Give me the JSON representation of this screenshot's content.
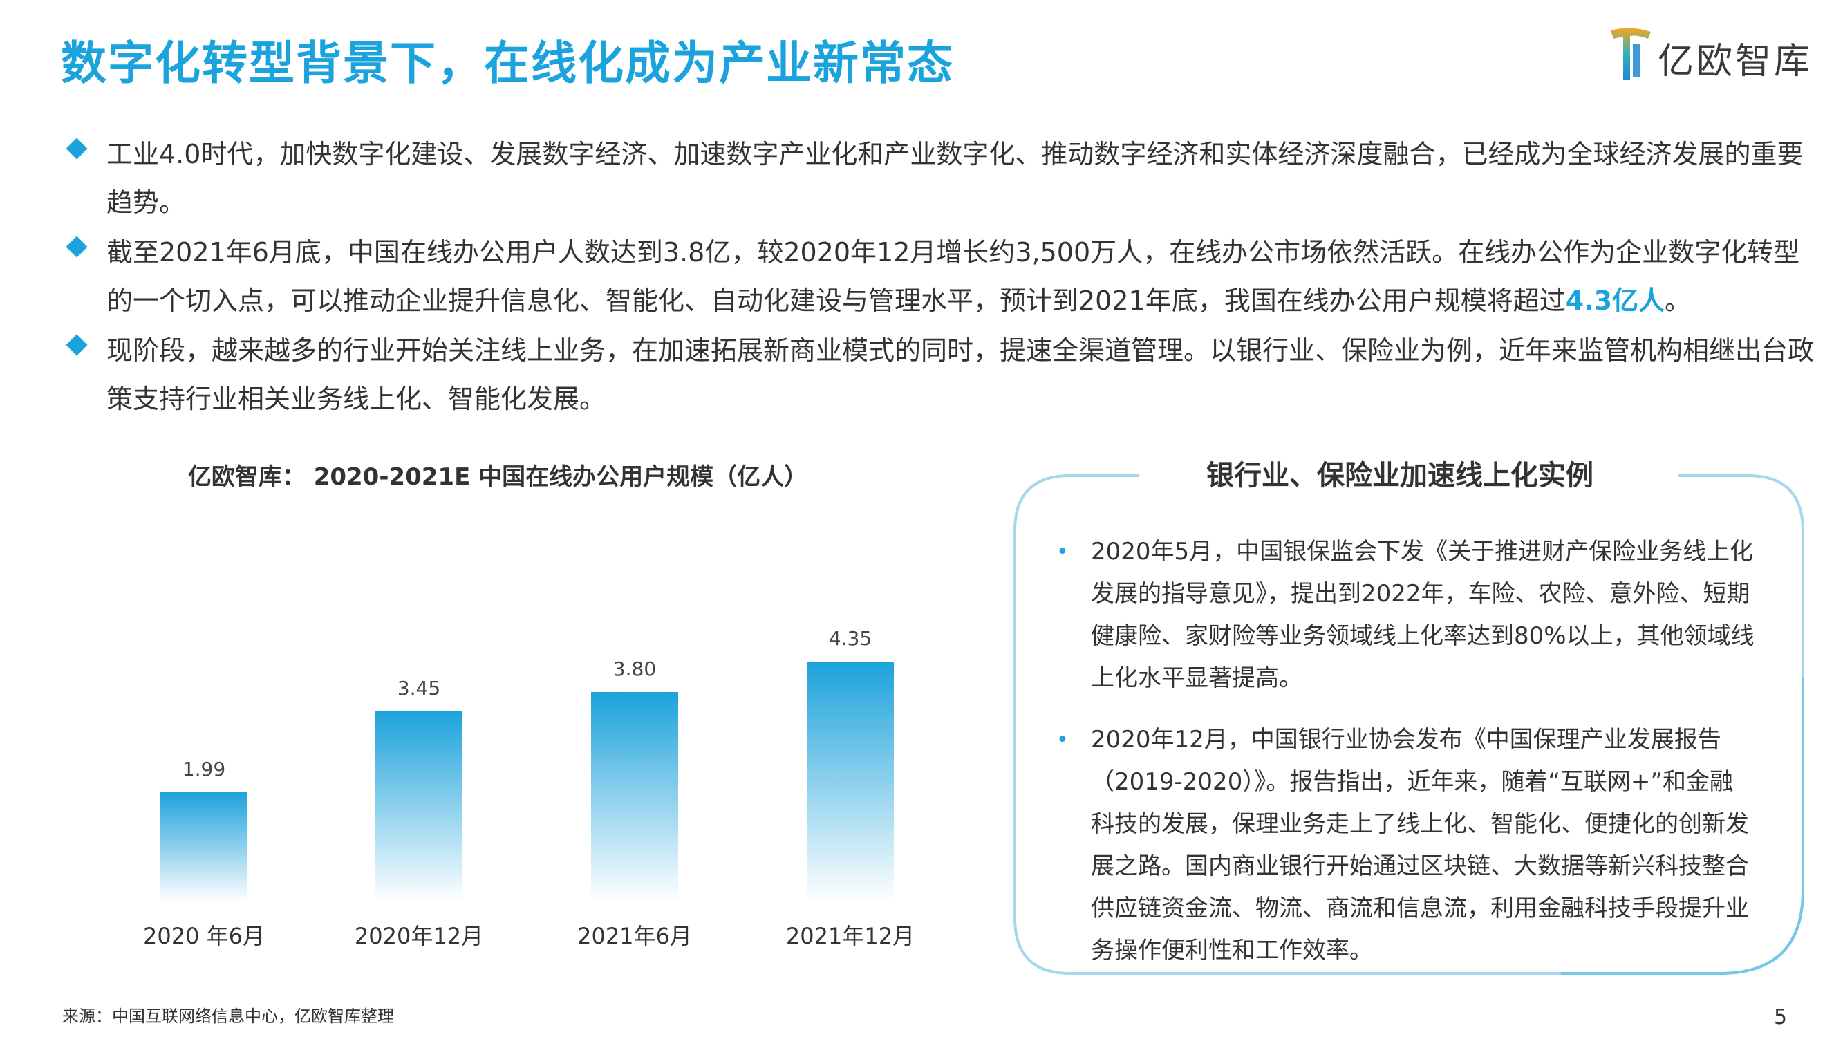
{
  "header": {
    "title": "数字化转型背景下，在线化成为产业新常态",
    "logo_text": "亿欧智库"
  },
  "bullets": [
    {
      "text": "工业4.0时代，加快数字化建设、发展数字经济、加速数字产业化和产业数字化、推动数字经济和实体经济深度融合，已经成为全球经济发展的重要趋势。"
    },
    {
      "text_before": "截至2021年6月底，中国在线办公用户人数达到3.8亿，较2020年12月增长约3,500万人，在线办公市场依然活跃。在线办公作为企业数字化转型的一个切入点，可以推动企业提升信息化、智能化、自动化建设与管理水平，预计到2021年底，我国在线办公用户规模将超过",
      "highlight": "4.3亿人",
      "text_after": "。"
    },
    {
      "text": "现阶段，越来越多的行业开始关注线上业务，在加速拓展新商业模式的同时，提速全渠道管理。以银行业、保险业为例，近年来监管机构相继出台政策支持行业相关业务线上化、智能化发展。"
    }
  ],
  "chart_data": {
    "type": "bar",
    "title": "亿欧智库： 2020-2021E 中国在线办公用户规模（亿人）",
    "categories": [
      "2020 年6月",
      "2020年12月",
      "2021年6月",
      "2021年12月"
    ],
    "values": [
      1.99,
      3.45,
      3.8,
      4.35
    ],
    "value_labels": [
      "1.99",
      "3.45",
      "3.80",
      "4.35"
    ],
    "ylim": [
      0,
      4.5
    ],
    "grid": false,
    "legend": "none",
    "bar_gradient": [
      "#1ca2db",
      "#ffffff"
    ]
  },
  "box": {
    "title": "银行业、保险业加速线上化实例",
    "items": [
      {
        "text": "2020年5月，中国银保监会下发《关于推进财产保险业务线上化发展的指导意见》，提出到2022年，车险、农险、意外险、短期健康险、家财险等业务领域线上化率达到80%以上，其他领域线上化水平显著提高。"
      },
      {
        "text": "2020年12月，中国银行业协会发布《中国保理产业发展报告（2019-2020）》。报告指出，近年来，随着“互联网+”和金融科技的发展，保理业务走上了线上化、智能化、便捷化的创新发展之路。国内商业银行开始通过区块链、大数据等新兴科技整合供应链资金流、物流、商流和信息流，利用金融科技手段提升业务操作便利性和工作效率。"
      }
    ]
  },
  "footer": {
    "source": "来源：中国互联网络信息中心，亿欧智库整理",
    "page": "5"
  },
  "colors": {
    "accent": "#1aa3dd",
    "box_border": "#a6d7ec"
  }
}
